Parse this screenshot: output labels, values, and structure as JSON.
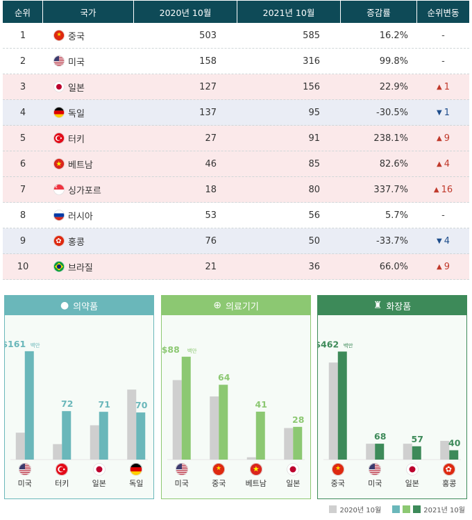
{
  "table": {
    "headers": [
      "순위",
      "국가",
      "2020년 10월",
      "2021년 10월",
      "증감률",
      "순위변동"
    ],
    "rows": [
      {
        "rank": "1",
        "country": "중국",
        "flag": "cn-flag-icon",
        "v2020": "503",
        "v2021": "585",
        "rate": "16.2%",
        "change": "-",
        "dir": "none",
        "bg": ""
      },
      {
        "rank": "2",
        "country": "미국",
        "flag": "us-flag-icon",
        "v2020": "158",
        "v2021": "316",
        "rate": "99.8%",
        "change": "-",
        "dir": "none",
        "bg": ""
      },
      {
        "rank": "3",
        "country": "일본",
        "flag": "jp-flag-icon",
        "v2020": "127",
        "v2021": "156",
        "rate": "22.9%",
        "change": "1",
        "dir": "up",
        "bg": "pink"
      },
      {
        "rank": "4",
        "country": "독일",
        "flag": "de-flag-icon",
        "v2020": "137",
        "v2021": "95",
        "rate": "-30.5%",
        "change": "1",
        "dir": "down",
        "bg": "blue"
      },
      {
        "rank": "5",
        "country": "터키",
        "flag": "tr-flag-icon",
        "v2020": "27",
        "v2021": "91",
        "rate": "238.1%",
        "change": "9",
        "dir": "up",
        "bg": "pink"
      },
      {
        "rank": "6",
        "country": "베트남",
        "flag": "vn-flag-icon",
        "v2020": "46",
        "v2021": "85",
        "rate": "82.6%",
        "change": "4",
        "dir": "up",
        "bg": "pink"
      },
      {
        "rank": "7",
        "country": "싱가포르",
        "flag": "sg-flag-icon",
        "v2020": "18",
        "v2021": "80",
        "rate": "337.7%",
        "change": "16",
        "dir": "up",
        "bg": "pink"
      },
      {
        "rank": "8",
        "country": "러시아",
        "flag": "ru-flag-icon",
        "v2020": "53",
        "v2021": "56",
        "rate": "5.7%",
        "change": "-",
        "dir": "none",
        "bg": ""
      },
      {
        "rank": "9",
        "country": "홍콩",
        "flag": "hk-flag-icon",
        "v2020": "76",
        "v2021": "50",
        "rate": "-33.7%",
        "change": "4",
        "dir": "down",
        "bg": "blue"
      },
      {
        "rank": "10",
        "country": "브라질",
        "flag": "br-flag-icon",
        "v2020": "21",
        "v2021": "36",
        "rate": "66.0%",
        "change": "9",
        "dir": "up",
        "bg": "pink"
      }
    ]
  },
  "chart_data": [
    {
      "type": "bar",
      "title": "의약품",
      "icon": "pills-icon",
      "color2021": "#6ab7ba",
      "color2020": "#cfcfcf",
      "unit": "백만",
      "categories": [
        "미국",
        "터키",
        "일본",
        "독일"
      ],
      "flags": [
        "us-flag-icon",
        "tr-flag-icon",
        "jp-flag-icon",
        "de-flag-icon"
      ],
      "series": [
        {
          "name": "2020년 10월",
          "values": [
            40,
            23,
            51,
            104
          ]
        },
        {
          "name": "2021년 10월",
          "values": [
            161,
            72,
            71,
            70
          ]
        }
      ],
      "labels": [
        "$161",
        "72",
        "71",
        "70"
      ],
      "ylim": [
        0,
        165
      ]
    },
    {
      "type": "bar",
      "title": "의료기기",
      "icon": "medical-kit-icon",
      "color2021": "#8cc872",
      "color2020": "#cfcfcf",
      "unit": "백만",
      "categories": [
        "미국",
        "중국",
        "베트남",
        "일본"
      ],
      "flags": [
        "us-flag-icon",
        "cn-flag-icon",
        "vn-flag-icon",
        "jp-flag-icon"
      ],
      "series": [
        {
          "name": "2020년 10월",
          "values": [
            68,
            54,
            2,
            27
          ]
        },
        {
          "name": "2021년 10월",
          "values": [
            88,
            64,
            41,
            28
          ]
        }
      ],
      "labels": [
        "$88",
        "64",
        "41",
        "28"
      ],
      "ylim": [
        0,
        95
      ]
    },
    {
      "type": "bar",
      "title": "화장품",
      "icon": "cosmetics-icon",
      "color2021": "#3d8a59",
      "color2020": "#cfcfcf",
      "unit": "백만",
      "categories": [
        "중국",
        "미국",
        "일본",
        "홍콩"
      ],
      "flags": [
        "cn-flag-icon",
        "us-flag-icon",
        "jp-flag-icon",
        "hk-flag-icon"
      ],
      "series": [
        {
          "name": "2020년 10월",
          "values": [
            415,
            68,
            68,
            80
          ]
        },
        {
          "name": "2021년 10월",
          "values": [
            462,
            68,
            57,
            40
          ]
        }
      ],
      "labels": [
        "$462",
        "68",
        "57",
        "40"
      ],
      "ylim": [
        0,
        475
      ]
    }
  ],
  "legend": {
    "label2020": "2020년 10월",
    "label2021": "2021년 10월",
    "colors": [
      "#cfcfcf",
      "#6ab7ba",
      "#8cc872",
      "#3d8a59"
    ]
  }
}
